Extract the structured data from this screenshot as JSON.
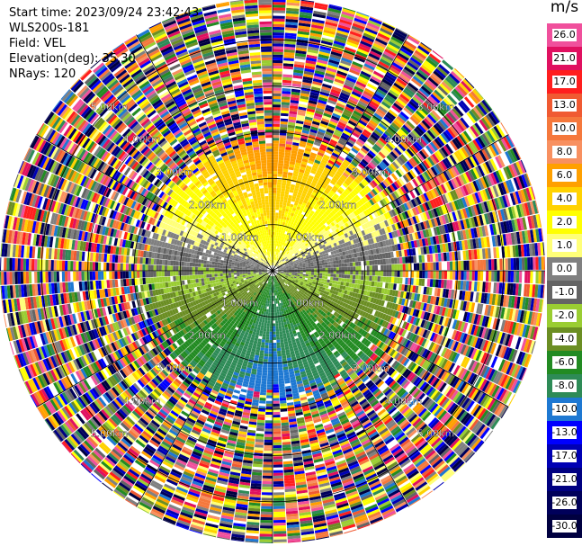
{
  "header": {
    "start_time": "Start time: 2023/09/24 23:42:43",
    "instrument": "WLS200s-181",
    "field": "Field: VEL",
    "elevation": "Elevation(deg): 35.30",
    "nrays": "NRays: 120"
  },
  "colorbar": {
    "unit": "m/s",
    "bands": [
      {
        "label": "26.0",
        "color": "#f0509c"
      },
      {
        "label": "21.0",
        "color": "#e01060"
      },
      {
        "label": "17.0",
        "color": "#ff1e1e"
      },
      {
        "label": "13.0",
        "color": "#f05a32"
      },
      {
        "label": "10.0",
        "color": "#f5783c"
      },
      {
        "label": "8.0",
        "color": "#f89060"
      },
      {
        "label": "6.0",
        "color": "#ffa000"
      },
      {
        "label": "4.0",
        "color": "#ffd200"
      },
      {
        "label": "2.0",
        "color": "#ffff00"
      },
      {
        "label": "1.0",
        "color": "#ffff78"
      },
      {
        "label": "0.0",
        "color": "#808080"
      },
      {
        "label": "-1.0",
        "color": "#646464"
      },
      {
        "label": "-2.0",
        "color": "#9acd32"
      },
      {
        "label": "-4.0",
        "color": "#6b8e23"
      },
      {
        "label": "-6.0",
        "color": "#228b22"
      },
      {
        "label": "-8.0",
        "color": "#2e8b57"
      },
      {
        "label": "-10.0",
        "color": "#1e78d2"
      },
      {
        "label": "-13.0",
        "color": "#0000ff"
      },
      {
        "label": "-17.0",
        "color": "#0000b4"
      },
      {
        "label": "-21.0",
        "color": "#000080"
      },
      {
        "label": "-26.0",
        "color": "#00005a"
      },
      {
        "label": "-30.0",
        "color": "#000040"
      }
    ]
  },
  "chart_data": {
    "type": "heatmap",
    "projection": "polar-ppi",
    "field": "VEL",
    "elevation_deg": 35.3,
    "nrays": 120,
    "range_rings_km": [
      1.0,
      2.0,
      3.0,
      4.0,
      5.0
    ],
    "max_range_km": 5.9,
    "range_ring_labels": [
      "1.00km",
      "2.00km",
      "3.00km",
      "4.00km",
      "5.00km"
    ],
    "vmin": -30.0,
    "vmax": 26.0,
    "clean_data_range_km": 2.75,
    "pattern": "dipole: positive velocities (yellow/orange) to the north, negative (green/blue) to the south, noisy random values beyond ~2.75 km",
    "velocity_by_direction": [
      {
        "direction": "N",
        "near_m_s": 2.0,
        "far_m_s": 8.0
      },
      {
        "direction": "NE",
        "near_m_s": 1.0,
        "far_m_s": 4.0
      },
      {
        "direction": "E",
        "near_m_s": -0.5,
        "far_m_s": -1.0
      },
      {
        "direction": "SE",
        "near_m_s": -2.0,
        "far_m_s": -6.0
      },
      {
        "direction": "S",
        "near_m_s": -6.0,
        "far_m_s": -10.0
      },
      {
        "direction": "SW",
        "near_m_s": -2.0,
        "far_m_s": -6.0
      },
      {
        "direction": "W",
        "near_m_s": -0.5,
        "far_m_s": -1.0
      },
      {
        "direction": "NW",
        "near_m_s": 1.0,
        "far_m_s": 4.0
      }
    ]
  }
}
